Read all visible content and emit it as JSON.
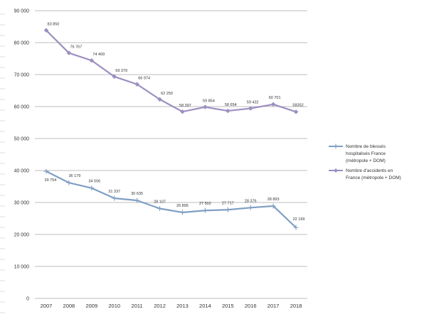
{
  "chart_data": {
    "type": "line",
    "title": "",
    "xlabel": "",
    "ylabel": "",
    "ylim": [
      0,
      90000
    ],
    "yticks": [
      0,
      10000,
      20000,
      30000,
      40000,
      50000,
      60000,
      70000,
      80000,
      90000
    ],
    "ytick_labels": [
      "0",
      "10 000",
      "20 000",
      "30 000",
      "40 000",
      "50 000",
      "60 000",
      "70 000",
      "80 000",
      "90 000"
    ],
    "categories": [
      "2007",
      "2008",
      "2009",
      "2010",
      "2011",
      "2012",
      "2013",
      "2014",
      "2015",
      "2016",
      "2017",
      "2018"
    ],
    "grid": true,
    "legend_position": "right",
    "series": [
      {
        "name": "Nombre de blessés hospitalisés France (métropole + DOM)",
        "legend_lines": [
          "Nombre de blessés",
          "hospitalisés France",
          "(métropole + DOM)"
        ],
        "marker": "plus",
        "color": "#7f9fc4",
        "values": [
          39754,
          36179,
          34506,
          31337,
          30635,
          28107,
          26895,
          27502,
          27717,
          28376,
          28893,
          22169
        ],
        "labels": [
          "39 754",
          "36 179",
          "34 506",
          "31 337",
          "30 635",
          "28 107",
          "26 895",
          "27 502",
          "27 717",
          "28 376",
          "28 893",
          "22 169"
        ]
      },
      {
        "name": "Nombre d'accidents en France (métropole + DOM)",
        "legend_lines": [
          "Nombre d'accidents en",
          "France (métropole + DOM)"
        ],
        "marker": "diamond",
        "color": "#9c8fc0",
        "values": [
          83850,
          76767,
          74409,
          69379,
          66974,
          62250,
          58397,
          59854,
          58654,
          59432,
          60701,
          58352
        ],
        "labels": [
          "83 850",
          "76 767",
          "74 409",
          "69 379",
          "66 974",
          "62 250",
          "58 397",
          "59 854",
          "58 654",
          "59 432",
          "60 701",
          "58352"
        ]
      }
    ]
  }
}
